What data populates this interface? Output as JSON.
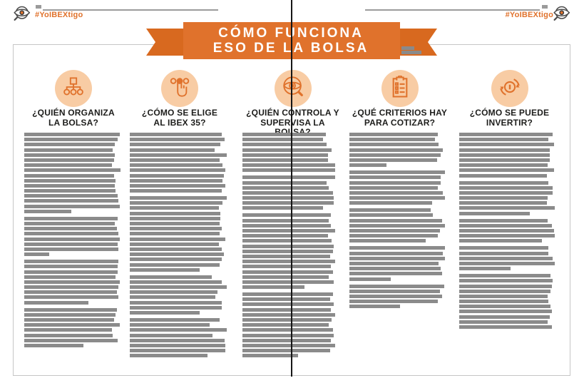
{
  "header": {
    "hashtag": "#YoIBEXtigo",
    "logo": "eye-magnifier-logo"
  },
  "banner": {
    "title_line1": "CÓMO FUNCIONA",
    "title_line2": "ESO DE LA BOLSA"
  },
  "colors": {
    "accent_orange": "#E0722C",
    "icon_circle_bg": "#F8CCA4",
    "placeholder_bar": "#8B8B8B",
    "headline_text": "#1D1D1B",
    "banner_text": "#FFFFFF"
  },
  "columns": [
    {
      "icon": "org-chart-icon",
      "heading_line1": "¿QUIÉN ORGANIZA",
      "heading_line2": "LA BOLSA?",
      "paragraphs": [
        [
          97,
          95,
          92,
          90,
          92,
          91,
          89,
          98,
          91,
          93,
          92,
          93,
          95,
          96,
          97,
          48
        ],
        [
          95,
          92,
          94,
          96,
          97,
          95,
          96,
          25
        ],
        [
          96,
          95,
          95,
          93,
          97,
          96,
          94,
          96,
          65
        ],
        [
          94,
          93,
          91,
          97,
          89,
          90,
          95,
          60
        ]
      ]
    },
    {
      "icon": "press-button-icon",
      "heading_line1": "¿CÓMO SE ELIGE",
      "heading_line2": "AL IBEX 35?",
      "paragraphs": [
        [
          92,
          95,
          91,
          85,
          97,
          90,
          93,
          96,
          94,
          93,
          96,
          92
        ],
        [
          97,
          93,
          89,
          91,
          91,
          90,
          92,
          90,
          96,
          89,
          92,
          94,
          92,
          90,
          70
        ],
        [
          82,
          92,
          97,
          88,
          86,
          92,
          92,
          70
        ],
        [
          90,
          80,
          97,
          83,
          95,
          96,
          96,
          78
        ]
      ]
    },
    {
      "icon": "eye-magnifier-icon",
      "heading_line1": "¿QUIÉN CONTROLA Y",
      "heading_line2": "SUPERVISA LA BOLSA?",
      "paragraphs": [
        [
          83,
          80,
          84,
          89,
          85,
          85,
          92,
          92
        ],
        [
          92,
          84,
          86,
          90,
          91,
          91,
          80
        ],
        [
          88,
          86,
          88,
          92,
          85,
          89,
          91,
          90,
          87,
          92,
          88,
          90,
          86,
          91,
          62
        ],
        [
          90,
          87,
          91,
          88,
          92,
          89,
          86,
          90,
          91,
          88,
          92,
          87,
          55
        ]
      ]
    },
    {
      "icon": "checklist-clipboard-icon",
      "heading_line1": "¿QUÉ CRITERIOS HAY",
      "heading_line2": "PARA COTIZAR?",
      "paragraphs": [
        [
          88,
          85,
          89,
          93,
          91,
          87,
          37
        ],
        [
          95,
          91,
          91,
          88,
          93,
          95,
          82
        ],
        [
          81,
          83,
          92,
          95,
          90,
          88,
          76
        ],
        [
          95,
          93,
          95,
          89,
          91,
          92,
          41
        ],
        [
          94,
          90,
          92,
          88,
          50
        ]
      ]
    },
    {
      "icon": "invest-cycle-icon",
      "heading_line1": "¿CÓMO SE PUEDE",
      "heading_line2": "INVERTIR?",
      "paragraphs": [
        [
          93,
          89,
          94,
          90,
          90,
          90,
          88,
          94,
          87
        ],
        [
          89,
          93,
          93,
          88,
          87,
          95,
          70
        ],
        [
          88,
          92,
          94,
          95,
          82
        ],
        [
          89,
          89,
          93,
          95,
          51
        ],
        [
          91,
          93,
          92,
          91,
          88,
          89,
          91,
          92,
          90,
          88,
          92
        ]
      ]
    }
  ]
}
